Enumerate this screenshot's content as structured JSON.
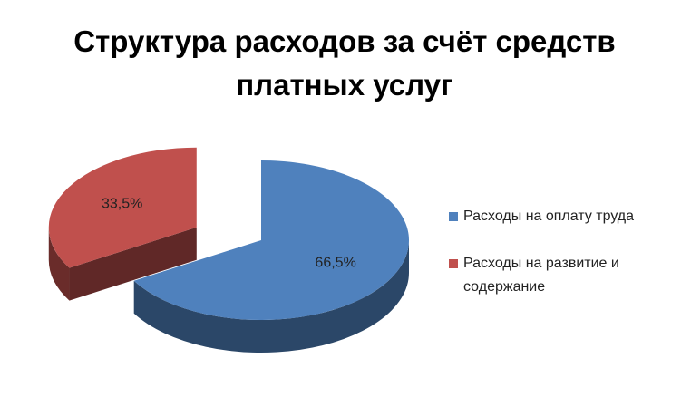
{
  "chart_data": {
    "type": "pie",
    "title": "Структура расходов за счёт средств платных услуг",
    "categories": [
      "Расходы на оплату труда",
      "Расходы на развитие и содержание"
    ],
    "values": [
      66.5,
      33.5
    ],
    "value_labels": [
      "66,5%",
      "33,5%"
    ],
    "colors": [
      "#4f81bd",
      "#c0504d"
    ],
    "legend": "right"
  }
}
